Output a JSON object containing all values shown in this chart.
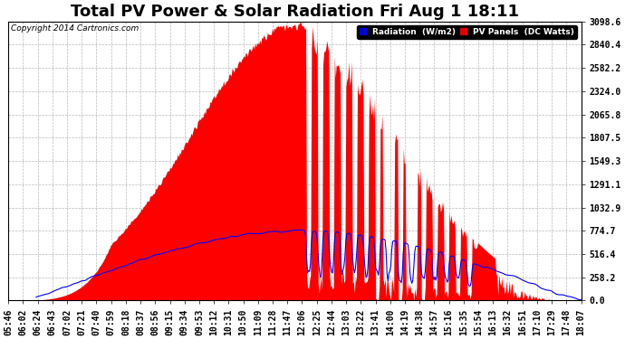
{
  "title": "Total PV Power & Solar Radiation Fri Aug 1 18:11",
  "copyright": "Copyright 2014 Cartronics.com",
  "ylim": [
    0.0,
    3098.6
  ],
  "yticks": [
    0.0,
    258.2,
    516.4,
    774.7,
    1032.9,
    1291.1,
    1549.3,
    1807.5,
    2065.8,
    2324.0,
    2582.2,
    2840.4,
    3098.6
  ],
  "x_labels": [
    "05:46",
    "06:02",
    "06:24",
    "06:43",
    "07:02",
    "07:21",
    "07:40",
    "07:59",
    "08:18",
    "08:37",
    "08:56",
    "09:15",
    "09:34",
    "09:53",
    "10:12",
    "10:31",
    "10:50",
    "11:09",
    "11:28",
    "11:47",
    "12:06",
    "12:25",
    "12:44",
    "13:03",
    "13:22",
    "13:41",
    "14:00",
    "14:19",
    "14:38",
    "14:57",
    "15:16",
    "15:35",
    "15:54",
    "16:13",
    "16:32",
    "16:51",
    "17:10",
    "17:29",
    "17:48",
    "18:07"
  ],
  "legend_radiation_color": "#0000dd",
  "legend_pv_color": "#dd0000",
  "background_color": "#ffffff",
  "grid_color": "#aaaaaa",
  "title_fontsize": 13,
  "tick_fontsize": 7
}
